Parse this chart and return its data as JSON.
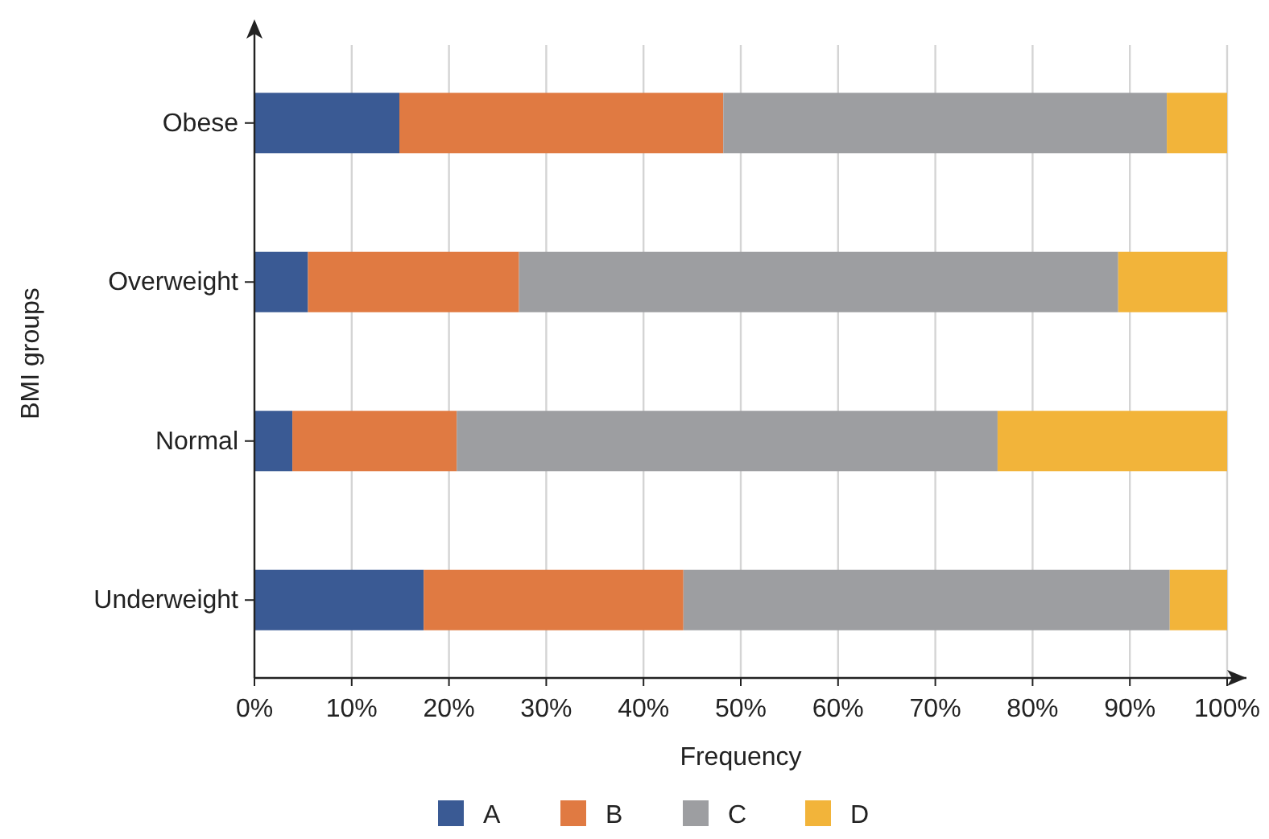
{
  "chart_data": {
    "type": "bar",
    "orientation": "horizontal",
    "stacked": true,
    "xlabel": "Frequency",
    "ylabel": "BMI groups",
    "categories": [
      "Obese",
      "Overweight",
      "Normal",
      "Underweight"
    ],
    "series": [
      {
        "name": "A",
        "color": "#3a5a94",
        "values": [
          14.9,
          5.5,
          3.9,
          17.4
        ]
      },
      {
        "name": "B",
        "color": "#e07a42",
        "values": [
          33.3,
          21.7,
          16.9,
          26.7
        ]
      },
      {
        "name": "C",
        "color": "#9d9ea1",
        "values": [
          45.6,
          61.6,
          55.6,
          50.0
        ]
      },
      {
        "name": "D",
        "color": "#f2b43a",
        "values": [
          6.2,
          11.2,
          23.6,
          5.9
        ]
      }
    ],
    "xlim": [
      0,
      100
    ],
    "xticks": [
      {
        "value": 0,
        "label": "0%"
      },
      {
        "value": 10,
        "label": "10%"
      },
      {
        "value": 20,
        "label": "20%"
      },
      {
        "value": 30,
        "label": "30%"
      },
      {
        "value": 40,
        "label": "40%"
      },
      {
        "value": 50,
        "label": "50%"
      },
      {
        "value": 60,
        "label": "60%"
      },
      {
        "value": 70,
        "label": "70%"
      },
      {
        "value": 80,
        "label": "80%"
      },
      {
        "value": 90,
        "label": "90%"
      },
      {
        "value": 100,
        "label": "100%"
      }
    ],
    "grid": "x",
    "legend": "bottom"
  }
}
